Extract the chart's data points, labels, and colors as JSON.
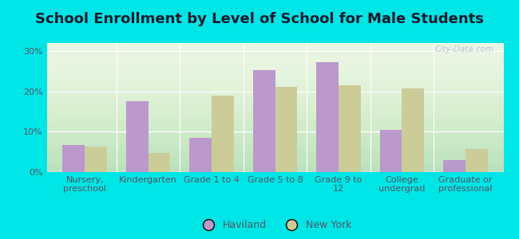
{
  "title": "School Enrollment by Level of School for Male Students",
  "categories": [
    "Nursery,\npreschool",
    "Kindergarten",
    "Grade 1 to 4",
    "Grade 5 to 8",
    "Grade 9 to\n12",
    "College\nundergrad",
    "Graduate or\nprofessional"
  ],
  "haviland_values": [
    6.8,
    17.5,
    8.5,
    25.2,
    27.3,
    10.5,
    3.0
  ],
  "newyork_values": [
    6.3,
    4.7,
    19.0,
    21.2,
    21.5,
    20.8,
    5.8
  ],
  "haviland_color": "#bb99cc",
  "newyork_color": "#cccc99",
  "bar_width": 0.35,
  "ylim": [
    0,
    32
  ],
  "yticks": [
    0,
    10,
    20,
    30
  ],
  "ytick_labels": [
    "0%",
    "10%",
    "20%",
    "30%"
  ],
  "background_color": "#00e5e5",
  "legend_haviland": "Haviland",
  "legend_newyork": "New York",
  "title_fontsize": 13,
  "tick_fontsize": 8,
  "legend_fontsize": 9,
  "title_color": "#1a1a2e"
}
